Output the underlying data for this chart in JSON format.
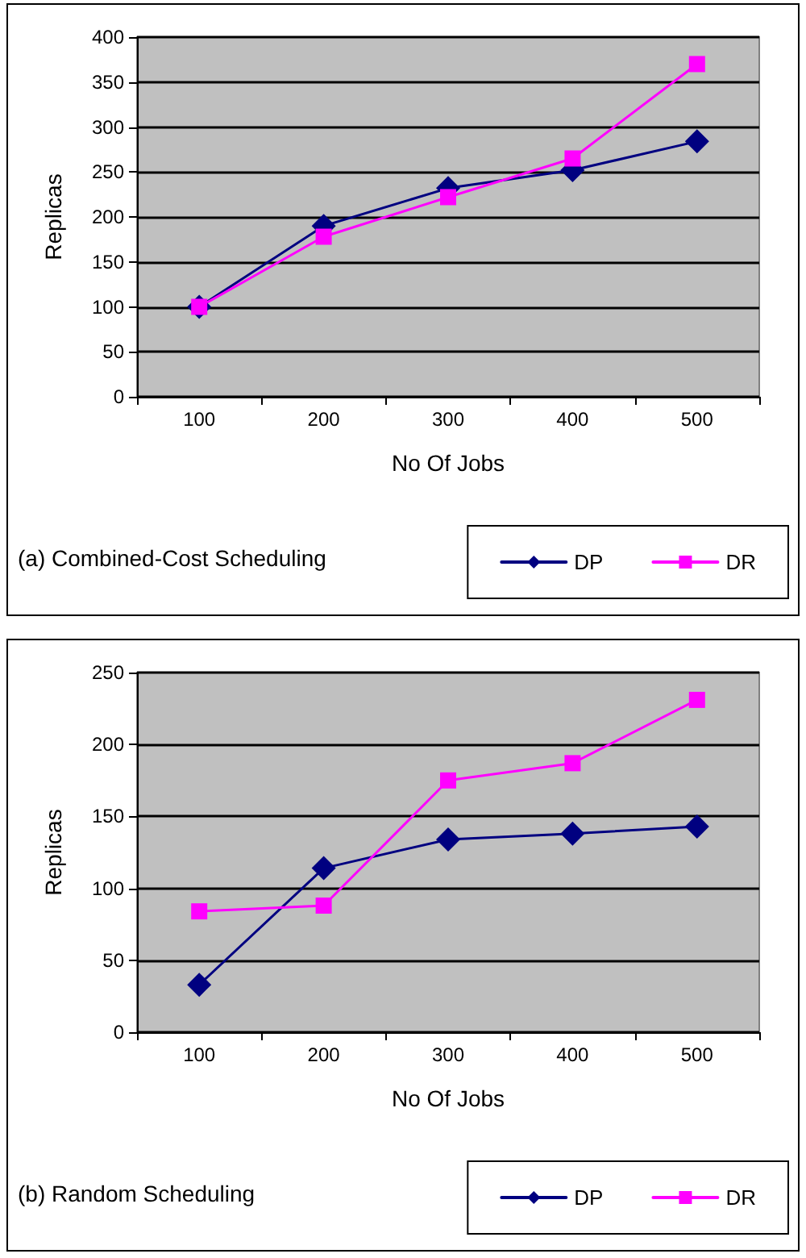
{
  "chart_data": [
    {
      "type": "line",
      "categories": [
        "100",
        "200",
        "300",
        "400",
        "500"
      ],
      "xlabel": "No Of Jobs",
      "ylabel": "Replicas",
      "ylim": [
        0,
        400
      ],
      "yticks": [
        0,
        50,
        100,
        150,
        200,
        250,
        300,
        350,
        400
      ],
      "grid": "y",
      "legend": "bottom right",
      "annotations": [
        "(a) Combined-Cost Scheduling"
      ],
      "series": [
        {
          "name": "DP",
          "color": "#000080",
          "marker": "diamond",
          "values": [
            100,
            190,
            232,
            252,
            284
          ]
        },
        {
          "name": "DR",
          "color": "#ff00ff",
          "marker": "square",
          "values": [
            100,
            178,
            222,
            265,
            370
          ]
        }
      ]
    },
    {
      "type": "line",
      "categories": [
        "100",
        "200",
        "300",
        "400",
        "500"
      ],
      "xlabel": "No Of Jobs",
      "ylabel": "Replicas",
      "ylim": [
        0,
        250
      ],
      "yticks": [
        0,
        50,
        100,
        150,
        200,
        250
      ],
      "grid": "y",
      "legend": "bottom right",
      "annotations": [
        "(b) Random Scheduling"
      ],
      "series": [
        {
          "name": "DP",
          "color": "#000080",
          "marker": "diamond",
          "values": [
            33,
            114,
            134,
            138,
            143
          ]
        },
        {
          "name": "DR",
          "color": "#ff00ff",
          "marker": "square",
          "values": [
            84,
            88,
            175,
            187,
            231
          ]
        }
      ]
    }
  ]
}
